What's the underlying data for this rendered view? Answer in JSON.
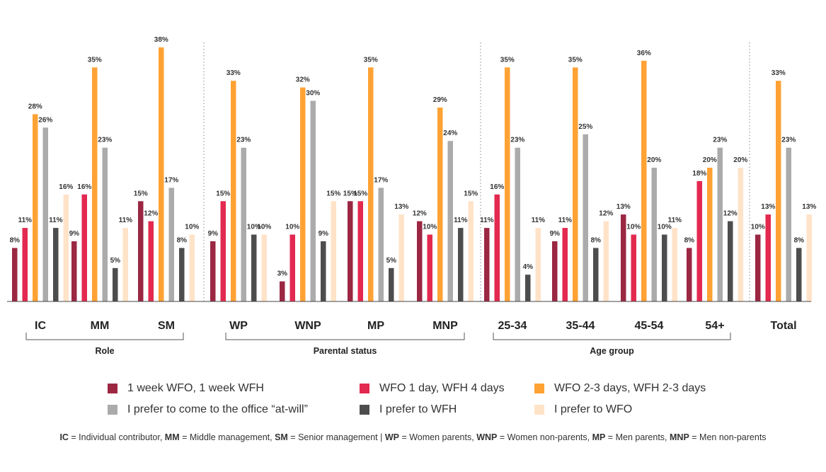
{
  "chart_data": {
    "type": "bar",
    "categories": [
      "IC",
      "MM",
      "SM",
      "WP",
      "WNP",
      "MP",
      "MNP",
      "25-34",
      "35-44",
      "45-54",
      "54+",
      "Total"
    ],
    "groups": [
      {
        "label": "Role",
        "categories": [
          "IC",
          "MM",
          "SM"
        ]
      },
      {
        "label": "Parental status",
        "categories": [
          "WP",
          "WNP",
          "MP",
          "MNP"
        ]
      },
      {
        "label": "Age group",
        "categories": [
          "25-34",
          "35-44",
          "45-54",
          "54+"
        ]
      },
      {
        "label": "",
        "categories": [
          "Total"
        ]
      }
    ],
    "series": [
      {
        "name": "1 week WFO, 1 week WFH",
        "color": "#9b2743",
        "values": [
          8,
          9,
          15,
          9,
          3,
          15,
          12,
          11,
          9,
          13,
          8,
          10
        ]
      },
      {
        "name": "WFO 1 day, WFH 4 days",
        "color": "#e3294f",
        "values": [
          11,
          16,
          12,
          15,
          10,
          15,
          10,
          16,
          11,
          10,
          18,
          13
        ]
      },
      {
        "name": "WFO 2-3 days, WFH 2-3 days",
        "color": "#ffa234",
        "values": [
          28,
          35,
          38,
          33,
          32,
          35,
          29,
          35,
          35,
          36,
          20,
          33
        ]
      },
      {
        "name": "I prefer to come to the office “at-will”",
        "color": "#ababab",
        "values": [
          26,
          23,
          17,
          23,
          30,
          17,
          24,
          23,
          25,
          20,
          23,
          23
        ]
      },
      {
        "name": "I prefer to WFH",
        "color": "#4d4d4d",
        "values": [
          11,
          5,
          8,
          10,
          9,
          5,
          11,
          4,
          8,
          10,
          12,
          8
        ]
      },
      {
        "name": "I prefer to WFO",
        "color": "#ffe3c8",
        "values": [
          16,
          11,
          10,
          10,
          15,
          13,
          15,
          11,
          12,
          11,
          20,
          13
        ]
      }
    ],
    "value_suffix": "%",
    "ylim": [
      0,
      40
    ],
    "title": "",
    "xlabel": "",
    "ylabel": ""
  },
  "legend": [
    {
      "label": "1 week WFO, 1 week WFH",
      "color": "#9b2743"
    },
    {
      "label": "WFO 1 day, WFH 4 days",
      "color": "#e3294f"
    },
    {
      "label": "WFO 2-3 days, WFH 2-3 days",
      "color": "#ffa234"
    },
    {
      "label": "I prefer to come to the office “at-will”",
      "color": "#ababab"
    },
    {
      "label": "I prefer to WFH",
      "color": "#4d4d4d"
    },
    {
      "label": "I prefer to WFO",
      "color": "#ffe3c8"
    }
  ],
  "footnote": [
    {
      "abbr": "IC",
      "text": " = Individual contributor,  "
    },
    {
      "abbr": "MM",
      "text": " = Middle management, "
    },
    {
      "abbr": "SM",
      "text": " = Senior management | "
    },
    {
      "abbr": "WP",
      "text": " = Women parents, "
    },
    {
      "abbr": "WNP",
      "text": " = Women non-parents, "
    },
    {
      "abbr": "MP",
      "text": " = Men parents, "
    },
    {
      "abbr": "MNP",
      "text": " = Men non-parents"
    }
  ]
}
